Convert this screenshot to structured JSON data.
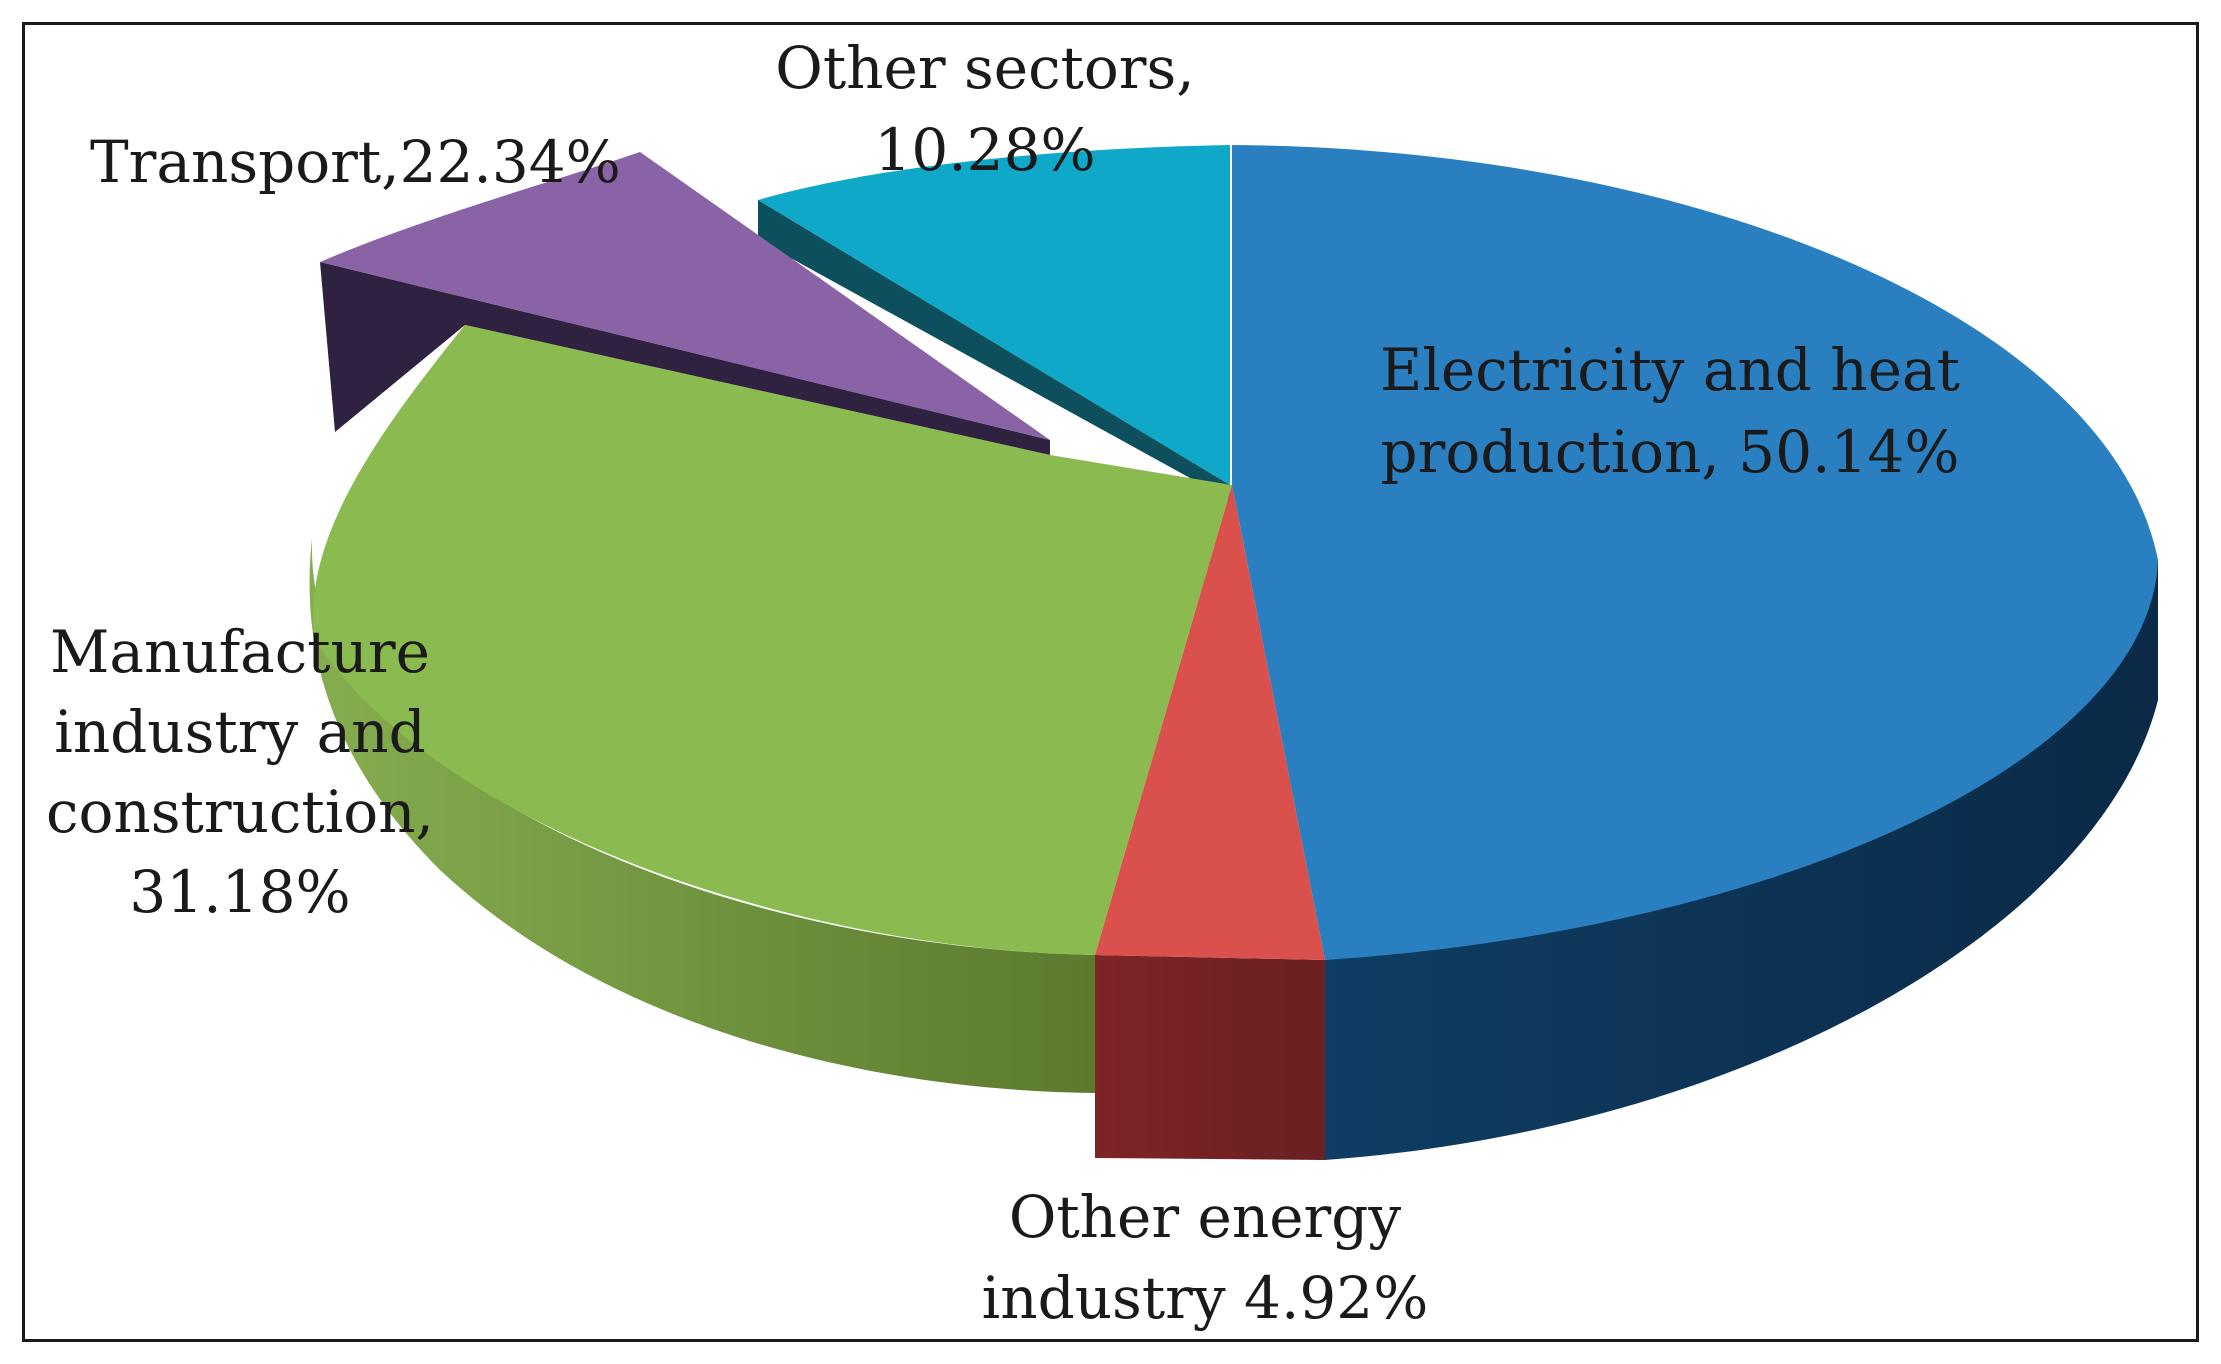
{
  "chart_data": {
    "type": "pie",
    "style": "3d-exploded",
    "title": "",
    "slices": [
      {
        "name": "Electricity and heat production",
        "label_lines": [
          "Electricity and heat",
          "production, 50.14%"
        ],
        "value": 50.14,
        "color": "#2a7fc1",
        "side_color": "#0f3a5e"
      },
      {
        "name": "Other energy industry",
        "label_lines": [
          "Other energy",
          "industry 4.92%"
        ],
        "value": 4.92,
        "color": "#d9504c",
        "side_color": "#7a2426"
      },
      {
        "name": "Manufacture industry and construction",
        "label_lines": [
          "Manufacture",
          "industry and",
          "construction,",
          "31.18%"
        ],
        "value": 31.18,
        "color": "#8bba51",
        "side_color": "#5e7e30"
      },
      {
        "name": "Transport",
        "label_lines": [
          "Transport,22.34%"
        ],
        "value": 22.34,
        "color": "#8a62a6",
        "side_color": "#2f2140"
      },
      {
        "name": "Other sectors",
        "label_lines": [
          "Other sectors,",
          "10.28%"
        ],
        "value": 10.28,
        "color": "#10a8c8",
        "side_color": "#0d4f5c"
      }
    ]
  }
}
